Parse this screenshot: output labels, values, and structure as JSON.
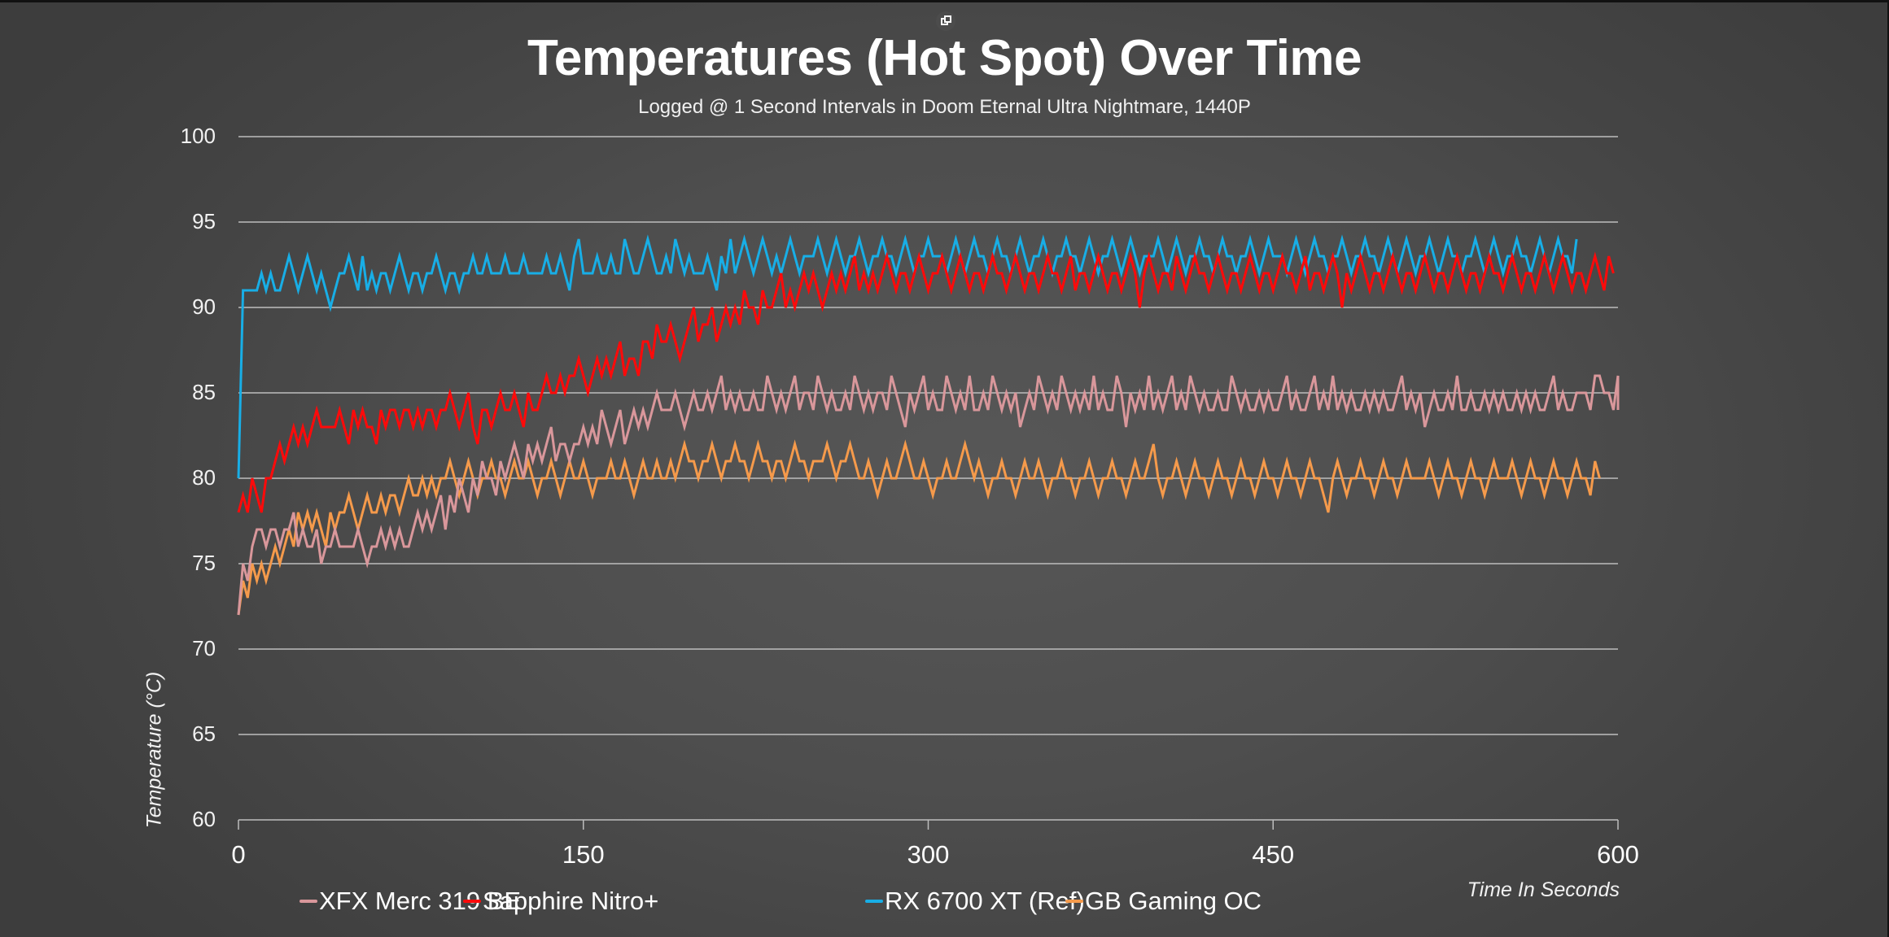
{
  "window": {
    "popout_icon": "popout-window-icon"
  },
  "chart_data": {
    "type": "line",
    "title": "Temperatures (Hot Spot) Over Time",
    "subtitle": "Logged @ 1 Second Intervals in Doom Eternal Ultra Nightmare, 1440P",
    "xlabel": "Time In Seconds",
    "ylabel": "Temperature (°C)",
    "xlim": [
      0,
      600
    ],
    "ylim": [
      60,
      100
    ],
    "x_ticks": [
      "0",
      "150",
      "300",
      "450",
      "600"
    ],
    "y_ticks": [
      "60",
      "65",
      "70",
      "75",
      "80",
      "85",
      "90",
      "95",
      "100"
    ],
    "grid": "horizontal",
    "legend_position": "bottom",
    "x_step_seconds": 2,
    "series": [
      {
        "name": "XFX Merc 319 BE",
        "color": "#d9979b",
        "values": [
          72,
          75,
          74,
          76,
          77,
          77,
          76,
          77,
          77,
          76,
          77,
          77,
          78,
          76,
          77,
          76,
          76,
          77,
          75,
          76,
          76,
          77,
          76,
          76,
          76,
          76,
          77,
          76,
          75,
          76,
          76,
          77,
          76,
          77,
          76,
          77,
          76,
          76,
          77,
          78,
          77,
          78,
          77,
          78,
          79,
          77,
          79,
          78,
          80,
          79,
          78,
          80,
          79,
          81,
          80,
          80,
          79,
          81,
          80,
          81,
          82,
          81,
          80,
          82,
          81,
          82,
          81,
          82,
          83,
          81,
          82,
          82,
          81,
          82,
          82,
          83,
          82,
          83,
          82,
          84,
          83,
          82,
          83,
          84,
          82,
          83,
          84,
          83,
          84,
          83,
          84,
          85,
          84,
          84,
          84,
          85,
          84,
          83,
          84,
          85,
          84,
          84,
          85,
          84,
          85,
          86,
          84,
          85,
          84,
          85,
          84,
          84,
          85,
          84,
          84,
          86,
          85,
          84,
          85,
          84,
          85,
          86,
          84,
          85,
          85,
          84,
          86,
          85,
          84,
          85,
          84,
          84,
          85,
          84,
          86,
          85,
          84,
          85,
          84,
          85,
          85,
          84,
          86,
          85,
          84,
          83,
          85,
          84,
          85,
          86,
          84,
          85,
          84,
          84,
          86,
          85,
          84,
          85,
          84,
          86,
          84,
          84,
          85,
          84,
          86,
          85,
          84,
          85,
          84,
          85,
          83,
          84,
          85,
          84,
          86,
          85,
          84,
          85,
          84,
          86,
          85,
          84,
          85,
          84,
          85,
          84,
          86,
          84,
          85,
          84,
          84,
          86,
          85,
          83,
          85,
          84,
          85,
          84,
          86,
          84,
          85,
          84,
          85,
          86,
          84,
          85,
          84,
          86,
          85,
          84,
          85,
          84,
          84,
          85,
          84,
          84,
          86,
          85,
          84,
          85,
          84,
          84,
          85,
          84,
          85,
          84,
          84,
          85,
          86,
          84,
          85,
          84,
          84,
          85,
          86,
          84,
          85,
          84,
          86,
          84,
          85,
          84,
          85,
          84,
          84,
          85,
          84,
          85,
          84,
          85,
          84,
          84,
          85,
          86,
          84,
          85,
          84,
          85,
          83,
          84,
          85,
          84,
          84,
          85,
          84,
          86,
          84,
          84,
          85,
          84,
          84,
          85,
          84,
          85,
          84,
          85,
          84,
          84,
          85,
          84,
          85,
          84,
          85,
          84,
          84,
          85,
          86,
          84,
          85,
          84,
          84,
          85,
          85,
          85,
          84,
          86,
          86,
          85,
          85,
          84,
          86,
          85,
          84,
          85
        ]
      },
      {
        "name": "Sapphire Nitro+",
        "color": "#ff0a0a",
        "values": [
          78,
          79,
          78,
          80,
          79,
          78,
          80,
          80,
          81,
          82,
          81,
          82,
          83,
          82,
          83,
          82,
          83,
          84,
          83,
          83,
          83,
          83,
          84,
          83,
          82,
          84,
          83,
          84,
          83,
          83,
          82,
          84,
          83,
          84,
          84,
          83,
          84,
          84,
          83,
          84,
          83,
          84,
          84,
          83,
          84,
          84,
          85,
          84,
          83,
          84,
          85,
          83,
          82,
          84,
          84,
          83,
          84,
          85,
          84,
          84,
          85,
          84,
          83,
          85,
          84,
          84,
          85,
          86,
          85,
          85,
          86,
          85,
          86,
          86,
          87,
          86,
          85,
          86,
          87,
          86,
          87,
          86,
          87,
          88,
          86,
          87,
          87,
          86,
          88,
          88,
          87,
          89,
          88,
          88,
          89,
          88,
          87,
          88,
          89,
          90,
          88,
          89,
          89,
          90,
          88,
          89,
          90,
          89,
          90,
          89,
          91,
          90,
          90,
          89,
          91,
          90,
          90,
          91,
          92,
          90,
          91,
          90,
          91,
          92,
          91,
          92,
          91,
          90,
          91,
          92,
          91,
          92,
          91,
          92,
          93,
          91,
          92,
          91,
          92,
          91,
          92,
          93,
          92,
          91,
          92,
          92,
          91,
          92,
          93,
          92,
          91,
          92,
          92,
          93,
          92,
          91,
          92,
          93,
          92,
          91,
          92,
          92,
          91,
          92,
          93,
          92,
          92,
          91,
          92,
          93,
          92,
          91,
          92,
          92,
          91,
          92,
          93,
          92,
          92,
          91,
          92,
          93,
          91,
          92,
          92,
          91,
          92,
          93,
          92,
          91,
          92,
          92,
          91,
          92,
          93,
          92,
          90,
          92,
          93,
          92,
          91,
          92,
          92,
          91,
          93,
          92,
          91,
          92,
          93,
          92,
          92,
          91,
          92,
          93,
          92,
          91,
          92,
          92,
          91,
          92,
          93,
          92,
          91,
          92,
          92,
          91,
          92,
          93,
          92,
          92,
          91,
          92,
          93,
          91,
          92,
          92,
          91,
          92,
          93,
          92,
          90,
          92,
          91,
          92,
          93,
          92,
          91,
          92,
          92,
          91,
          92,
          93,
          92,
          91,
          92,
          92,
          91,
          92,
          93,
          92,
          91,
          92,
          92,
          91,
          92,
          93,
          92,
          91,
          92,
          92,
          91,
          92,
          93,
          92,
          92,
          91,
          92,
          93,
          92,
          91,
          92,
          92,
          91,
          92,
          93,
          92,
          91,
          92,
          93,
          92,
          91,
          92,
          92,
          91,
          92,
          93,
          92,
          91,
          93,
          92
        ]
      },
      {
        "name": "RX 6700 XT (Ref)",
        "color": "#18aee6",
        "values": [
          80,
          91,
          91,
          91,
          91,
          92,
          91,
          92,
          91,
          91,
          92,
          93,
          92,
          91,
          92,
          93,
          92,
          91,
          92,
          91,
          90,
          91,
          92,
          92,
          93,
          92,
          91,
          93,
          91,
          92,
          91,
          92,
          92,
          91,
          92,
          93,
          92,
          91,
          92,
          92,
          91,
          92,
          92,
          93,
          92,
          91,
          92,
          92,
          91,
          92,
          92,
          93,
          92,
          92,
          93,
          92,
          92,
          92,
          93,
          92,
          92,
          92,
          93,
          92,
          92,
          92,
          92,
          93,
          92,
          92,
          93,
          92,
          91,
          93,
          94,
          92,
          92,
          92,
          93,
          92,
          92,
          93,
          92,
          92,
          94,
          93,
          92,
          92,
          93,
          94,
          93,
          92,
          92,
          93,
          92,
          94,
          93,
          92,
          93,
          92,
          92,
          92,
          93,
          92,
          91,
          93,
          92,
          94,
          92,
          93,
          94,
          93,
          92,
          93,
          94,
          93,
          92,
          93,
          92,
          93,
          94,
          93,
          92,
          93,
          93,
          93,
          94,
          93,
          92,
          93,
          94,
          93,
          92,
          93,
          93,
          94,
          93,
          92,
          93,
          93,
          94,
          93,
          93,
          92,
          93,
          94,
          93,
          92,
          93,
          93,
          94,
          93,
          93,
          93,
          92,
          93,
          94,
          93,
          92,
          93,
          94,
          93,
          93,
          92,
          93,
          94,
          93,
          93,
          92,
          93,
          94,
          93,
          92,
          93,
          93,
          94,
          93,
          92,
          93,
          93,
          94,
          93,
          93,
          92,
          93,
          94,
          93,
          92,
          93,
          93,
          94,
          93,
          92,
          93,
          94,
          93,
          92,
          93,
          93,
          93,
          94,
          93,
          92,
          93,
          94,
          93,
          92,
          93,
          93,
          94,
          93,
          93,
          92,
          93,
          94,
          93,
          93,
          92,
          93,
          93,
          94,
          93,
          92,
          93,
          94,
          93,
          93,
          93,
          92,
          93,
          94,
          93,
          92,
          93,
          94,
          93,
          93,
          92,
          93,
          93,
          94,
          93,
          92,
          93,
          93,
          94,
          93,
          93,
          92,
          93,
          94,
          93,
          92,
          93,
          94,
          93,
          92,
          93,
          93,
          94,
          93,
          92,
          93,
          94,
          93,
          93,
          92,
          93,
          93,
          94,
          93,
          92,
          93,
          94,
          93,
          92,
          93,
          93,
          94,
          93,
          93,
          92,
          93,
          94,
          93,
          92,
          93,
          94,
          93,
          93,
          92,
          94
        ]
      },
      {
        "name": "GB Gaming OC",
        "color": "#f59a4b",
        "values": [
          72,
          74,
          73,
          75,
          74,
          75,
          74,
          75,
          76,
          75,
          76,
          77,
          76,
          78,
          77,
          78,
          77,
          78,
          77,
          76,
          78,
          77,
          78,
          78,
          79,
          78,
          77,
          78,
          79,
          78,
          78,
          79,
          78,
          79,
          79,
          78,
          79,
          80,
          79,
          79,
          80,
          79,
          80,
          79,
          80,
          80,
          81,
          80,
          79,
          80,
          81,
          80,
          79,
          80,
          80,
          81,
          80,
          80,
          79,
          80,
          81,
          80,
          80,
          81,
          80,
          79,
          80,
          80,
          81,
          80,
          79,
          80,
          81,
          80,
          80,
          81,
          80,
          79,
          80,
          80,
          80,
          81,
          80,
          80,
          81,
          80,
          79,
          80,
          81,
          80,
          80,
          81,
          80,
          80,
          81,
          80,
          81,
          82,
          81,
          81,
          80,
          81,
          81,
          82,
          81,
          80,
          81,
          81,
          82,
          81,
          81,
          80,
          81,
          82,
          81,
          81,
          80,
          81,
          81,
          80,
          81,
          82,
          81,
          81,
          80,
          81,
          81,
          81,
          82,
          81,
          80,
          81,
          81,
          82,
          81,
          80,
          80,
          81,
          80,
          79,
          80,
          81,
          80,
          80,
          81,
          82,
          81,
          80,
          80,
          81,
          80,
          79,
          80,
          80,
          81,
          80,
          80,
          81,
          82,
          81,
          80,
          81,
          80,
          79,
          80,
          80,
          81,
          80,
          80,
          79,
          80,
          81,
          80,
          80,
          81,
          80,
          79,
          80,
          80,
          81,
          80,
          80,
          79,
          80,
          80,
          81,
          80,
          79,
          80,
          80,
          81,
          80,
          80,
          79,
          80,
          81,
          80,
          80,
          81,
          82,
          80,
          79,
          80,
          80,
          81,
          80,
          79,
          80,
          81,
          80,
          80,
          79,
          80,
          81,
          80,
          80,
          79,
          80,
          81,
          80,
          80,
          79,
          80,
          81,
          80,
          80,
          79,
          80,
          81,
          80,
          80,
          79,
          80,
          81,
          80,
          80,
          79,
          78,
          80,
          81,
          80,
          79,
          80,
          80,
          81,
          80,
          80,
          79,
          80,
          81,
          80,
          80,
          79,
          80,
          81,
          80,
          80,
          80,
          80,
          81,
          80,
          79,
          80,
          81,
          80,
          80,
          79,
          80,
          81,
          80,
          80,
          79,
          80,
          81,
          80,
          80,
          80,
          81,
          80,
          79,
          80,
          81,
          80,
          80,
          79,
          80,
          81,
          80,
          80,
          79,
          80,
          81,
          80,
          80,
          79,
          81,
          80
        ]
      }
    ]
  }
}
